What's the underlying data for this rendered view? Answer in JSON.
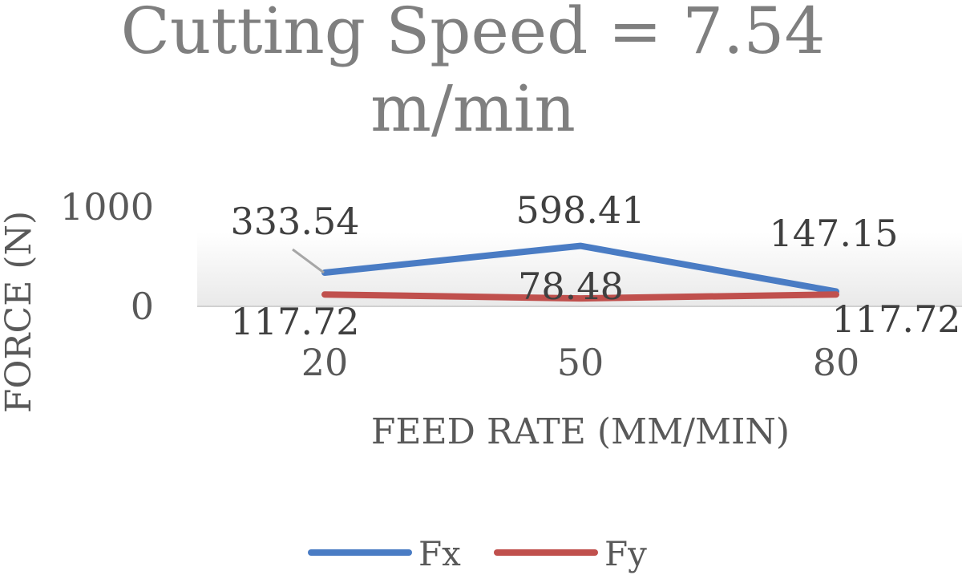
{
  "chart_data": {
    "type": "line",
    "title_lines": [
      "Cutting Speed = 7.54",
      "m/min"
    ],
    "xlabel": "FEED RATE (MM/MIN)",
    "ylabel": "FORCE (N)",
    "categories": [
      "20",
      "50",
      "80"
    ],
    "ylim": [
      0,
      1000
    ],
    "yticks": [
      "0",
      "1000"
    ],
    "grid": false,
    "legend_position": "bottom",
    "series": [
      {
        "name": "Fx",
        "color": "#4a7cc4",
        "values": [
          333.54,
          598.41,
          147.15
        ],
        "labels": [
          "333.54",
          "598.41",
          "147.15"
        ]
      },
      {
        "name": "Fy",
        "color": "#c0504d",
        "values": [
          117.72,
          78.48,
          117.72
        ],
        "labels": [
          "117.72",
          "78.48",
          "117.72"
        ]
      }
    ]
  }
}
